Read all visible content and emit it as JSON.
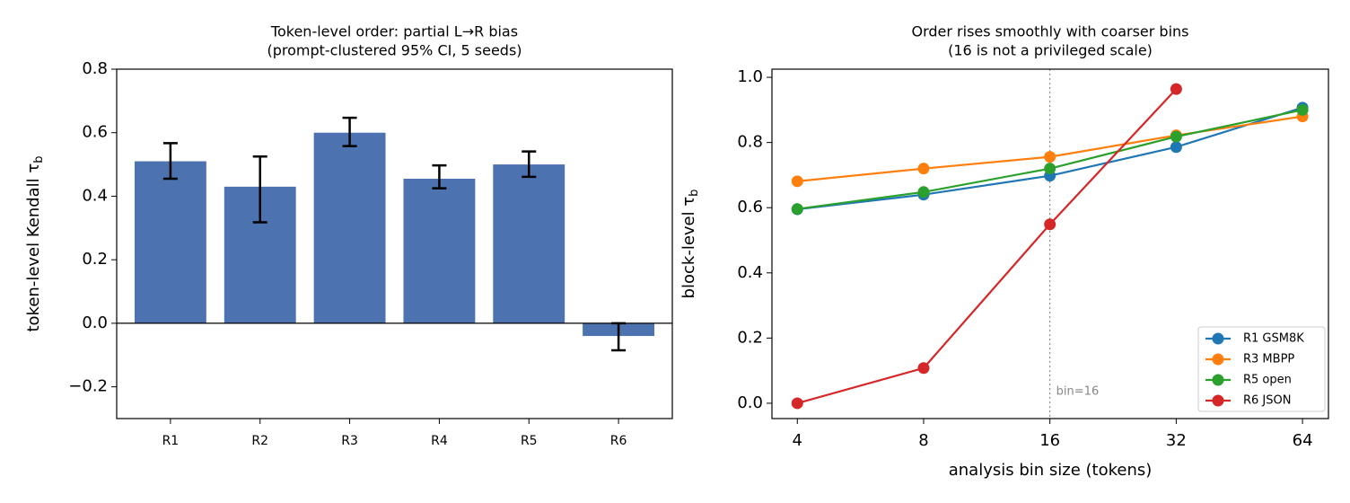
{
  "chart_data": [
    {
      "type": "bar",
      "title": [
        "Token-level order: partial L→R bias",
        "(prompt-clustered 95% CI, 5 seeds)"
      ],
      "ylabel": "token-level Kendall τ",
      "ylabel_sub": "b",
      "categories": [
        "R1",
        "R2",
        "R3",
        "R4",
        "R5",
        "R6"
      ],
      "values": [
        0.51,
        0.43,
        0.6,
        0.455,
        0.5,
        -0.04
      ],
      "ci": [
        [
          0.455,
          0.567
        ],
        [
          0.318,
          0.525
        ],
        [
          0.558,
          0.647
        ],
        [
          0.425,
          0.497
        ],
        [
          0.461,
          0.541
        ],
        [
          -0.085,
          0.0
        ]
      ],
      "color": "#4c72b0",
      "ylim": [
        -0.3,
        0.8
      ],
      "yticks": [
        {
          "value": -0.2,
          "label": "−0.2"
        },
        {
          "value": 0,
          "label": "0.0"
        },
        {
          "value": 0.2,
          "label": "0.2"
        },
        {
          "value": 0.4,
          "label": "0.4"
        },
        {
          "value": 0.6,
          "label": "0.6"
        },
        {
          "value": 0.8,
          "label": "0.8"
        }
      ]
    },
    {
      "type": "line",
      "title": [
        "Order rises smoothly with coarser bins",
        "(16 is not a privileged scale)"
      ],
      "xlabel": "analysis bin size (tokens)",
      "ylabel": "block-level τ",
      "ylabel_sub": "b",
      "x": [
        4,
        8,
        16,
        32,
        64
      ],
      "log_x": 2,
      "series": [
        {
          "name": "R1 GSM8K",
          "color": "#1f77b4",
          "values": [
            0.595,
            0.64,
            0.698,
            0.786,
            0.907
          ]
        },
        {
          "name": "R3 MBPP",
          "color": "#ff7f0e",
          "values": [
            0.681,
            0.72,
            0.756,
            0.822,
            0.88
          ]
        },
        {
          "name": "R5 open",
          "color": "#2ca02c",
          "values": [
            0.596,
            0.648,
            0.72,
            0.818,
            0.9
          ]
        },
        {
          "name": "R6 JSON",
          "color": "#d62728",
          "values": [
            0.0,
            0.108,
            0.549,
            0.964,
            null
          ]
        }
      ],
      "xlim": [
        3.48,
        73.8
      ],
      "ylim": [
        -0.047,
        1.025
      ],
      "xticks": [
        4,
        8,
        16,
        32,
        64
      ],
      "yticks": [
        {
          "value": 0,
          "label": "0.0"
        },
        {
          "value": 0.2,
          "label": "0.2"
        },
        {
          "value": 0.4,
          "label": "0.4"
        },
        {
          "value": 0.6,
          "label": "0.6"
        },
        {
          "value": 0.8,
          "label": "0.8"
        },
        {
          "value": 1,
          "label": "1.0"
        }
      ],
      "vline": {
        "x": 16,
        "label": "bin=16"
      },
      "legend": "lower right"
    }
  ]
}
